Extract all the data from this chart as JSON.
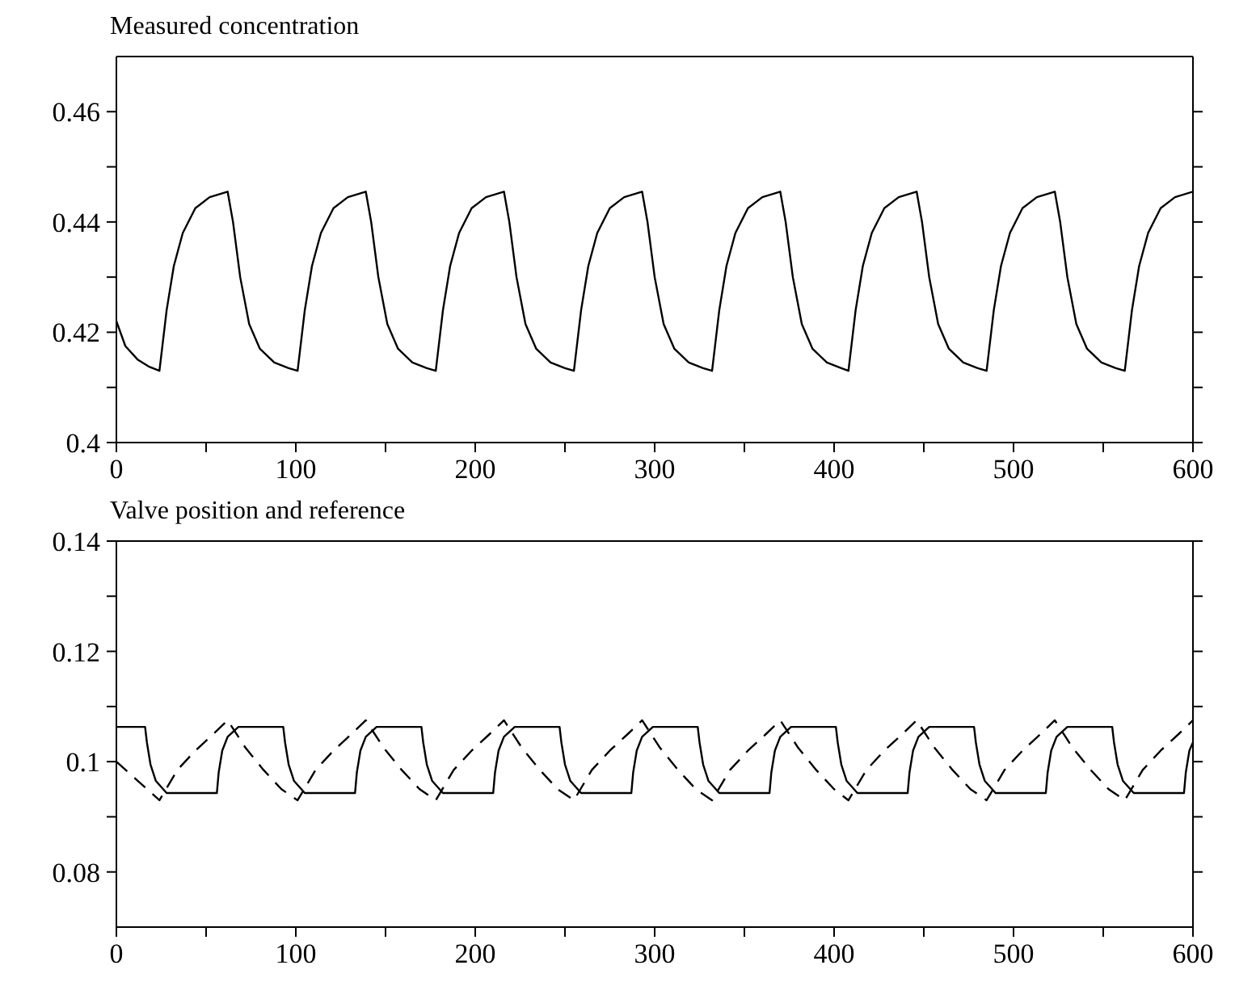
{
  "chart_data": [
    {
      "type": "line",
      "title": "Measured concentration",
      "xlim": [
        0,
        600
      ],
      "xticks": [
        0,
        {
          "value": 50,
          "label": null
        },
        100,
        {
          "value": 150,
          "label": null
        },
        200,
        {
          "value": 250,
          "label": null
        },
        300,
        {
          "value": 350,
          "label": null
        },
        400,
        {
          "value": 450,
          "label": null
        },
        500,
        {
          "value": 550,
          "label": null
        },
        600
      ],
      "ylim": [
        0.4,
        0.47
      ],
      "yticks": [
        0.4,
        {
          "value": 0.41,
          "label": null
        },
        0.42,
        {
          "value": 0.43,
          "label": null
        },
        0.44,
        {
          "value": 0.45,
          "label": null
        },
        0.46
      ],
      "series": [
        {
          "color": "#000000",
          "line_style": "solid",
          "x": [
            0,
            5,
            12,
            18,
            24,
            28,
            32,
            37,
            44,
            52,
            62,
            65,
            69,
            74,
            80,
            88,
            96,
            101,
            105,
            109,
            114,
            121,
            129,
            139,
            142,
            146,
            151,
            157,
            165,
            173,
            178,
            182,
            186,
            191,
            198,
            206,
            216,
            219,
            223,
            228,
            234,
            242,
            250,
            255,
            259,
            263,
            268,
            275,
            283,
            293,
            296,
            300,
            305,
            311,
            319,
            327,
            332,
            336,
            340,
            345,
            352,
            360,
            370,
            373,
            377,
            382,
            388,
            396,
            404,
            408,
            412,
            416,
            421,
            428,
            436,
            446,
            449,
            453,
            458,
            464,
            472,
            480,
            485,
            489,
            493,
            498,
            505,
            513,
            523,
            526,
            530,
            535,
            541,
            549,
            557,
            562,
            566,
            570,
            575,
            582,
            590,
            600
          ],
          "values": [
            0.422,
            0.4175,
            0.415,
            0.4138,
            0.413,
            0.424,
            0.432,
            0.438,
            0.4425,
            0.4445,
            0.4455,
            0.44,
            0.43,
            0.4215,
            0.417,
            0.4145,
            0.4135,
            0.413,
            0.424,
            0.432,
            0.438,
            0.4425,
            0.4445,
            0.4455,
            0.44,
            0.43,
            0.4215,
            0.417,
            0.4145,
            0.4135,
            0.413,
            0.424,
            0.432,
            0.438,
            0.4425,
            0.4445,
            0.4455,
            0.44,
            0.43,
            0.4215,
            0.417,
            0.4145,
            0.4135,
            0.413,
            0.424,
            0.432,
            0.438,
            0.4425,
            0.4445,
            0.4455,
            0.44,
            0.43,
            0.4215,
            0.417,
            0.4145,
            0.4135,
            0.413,
            0.424,
            0.432,
            0.438,
            0.4425,
            0.4445,
            0.4455,
            0.44,
            0.43,
            0.4215,
            0.417,
            0.4145,
            0.4135,
            0.413,
            0.424,
            0.432,
            0.438,
            0.4425,
            0.4445,
            0.4455,
            0.44,
            0.43,
            0.4215,
            0.417,
            0.4145,
            0.4135,
            0.413,
            0.424,
            0.432,
            0.438,
            0.4425,
            0.4445,
            0.4455,
            0.44,
            0.43,
            0.4215,
            0.417,
            0.4145,
            0.4135,
            0.413,
            0.424,
            0.432,
            0.438,
            0.4425,
            0.4445,
            0.4455
          ]
        }
      ]
    },
    {
      "type": "line",
      "title": "Valve position and reference",
      "xlim": [
        0,
        600
      ],
      "xticks": [
        0,
        {
          "value": 50,
          "label": null
        },
        100,
        {
          "value": 150,
          "label": null
        },
        200,
        {
          "value": 250,
          "label": null
        },
        300,
        {
          "value": 350,
          "label": null
        },
        400,
        {
          "value": 450,
          "label": null
        },
        500,
        {
          "value": 550,
          "label": null
        },
        600
      ],
      "ylim": [
        0.07,
        0.14
      ],
      "yticks": [
        0.08,
        {
          "value": 0.09,
          "label": null
        },
        0.1,
        {
          "value": 0.11,
          "label": null
        },
        0.12,
        {
          "value": 0.13,
          "label": null
        },
        0.14
      ],
      "series": [
        {
          "color": "#000000",
          "line_style": "solid",
          "x": [
            0,
            16,
            17,
            19,
            22,
            28,
            56,
            57,
            59,
            62,
            68,
            93,
            94,
            96,
            99,
            105,
            133,
            134,
            136,
            139,
            145,
            170,
            171,
            173,
            176,
            182,
            210,
            211,
            213,
            216,
            222,
            247,
            248,
            250,
            253,
            259,
            287,
            288,
            290,
            293,
            299,
            324,
            325,
            327,
            330,
            336,
            364,
            365,
            367,
            370,
            376,
            401,
            402,
            404,
            407,
            413,
            441,
            442,
            444,
            447,
            453,
            478,
            479,
            481,
            484,
            490,
            518,
            519,
            521,
            524,
            530,
            555,
            556,
            558,
            561,
            567,
            595,
            596,
            598,
            600
          ],
          "values": [
            0.1063,
            0.1063,
            0.1035,
            0.0995,
            0.0965,
            0.0943,
            0.0943,
            0.098,
            0.102,
            0.1045,
            0.1063,
            0.1063,
            0.1035,
            0.0995,
            0.0965,
            0.0943,
            0.0943,
            0.098,
            0.102,
            0.1045,
            0.1063,
            0.1063,
            0.1035,
            0.0995,
            0.0965,
            0.0943,
            0.0943,
            0.098,
            0.102,
            0.1045,
            0.1063,
            0.1063,
            0.1035,
            0.0995,
            0.0965,
            0.0943,
            0.0943,
            0.098,
            0.102,
            0.1045,
            0.1063,
            0.1063,
            0.1035,
            0.0995,
            0.0965,
            0.0943,
            0.0943,
            0.098,
            0.102,
            0.1045,
            0.1063,
            0.1063,
            0.1035,
            0.0995,
            0.0965,
            0.0943,
            0.0943,
            0.098,
            0.102,
            0.1045,
            0.1063,
            0.1063,
            0.1035,
            0.0995,
            0.0965,
            0.0943,
            0.0943,
            0.098,
            0.102,
            0.1045,
            0.1063,
            0.1063,
            0.1035,
            0.0995,
            0.0965,
            0.0943,
            0.0943,
            0.098,
            0.102,
            0.1035
          ]
        },
        {
          "color": "#000000",
          "line_style": "dashed",
          "x": [
            0,
            12,
            24,
            34,
            44,
            54,
            62,
            72,
            82,
            92,
            101,
            111,
            121,
            131,
            139,
            149,
            159,
            169,
            178,
            188,
            198,
            208,
            216,
            226,
            236,
            246,
            255,
            265,
            275,
            285,
            293,
            303,
            313,
            323,
            332,
            342,
            352,
            362,
            370,
            380,
            390,
            400,
            408,
            418,
            428,
            438,
            446,
            456,
            466,
            476,
            485,
            495,
            505,
            515,
            523,
            533,
            543,
            553,
            562,
            572,
            582,
            592,
            600
          ],
          "values": [
            0.1,
            0.0965,
            0.093,
            0.0985,
            0.102,
            0.105,
            0.1075,
            0.1025,
            0.0985,
            0.095,
            0.093,
            0.0985,
            0.102,
            0.105,
            0.1075,
            0.1025,
            0.0985,
            0.095,
            0.093,
            0.0985,
            0.102,
            0.105,
            0.1075,
            0.1025,
            0.0985,
            0.095,
            0.093,
            0.0985,
            0.102,
            0.105,
            0.1075,
            0.1025,
            0.0985,
            0.095,
            0.093,
            0.0985,
            0.102,
            0.105,
            0.1075,
            0.1025,
            0.0985,
            0.095,
            0.093,
            0.0985,
            0.102,
            0.105,
            0.1075,
            0.1025,
            0.0985,
            0.095,
            0.093,
            0.0985,
            0.102,
            0.105,
            0.1075,
            0.1025,
            0.0985,
            0.095,
            0.093,
            0.0985,
            0.102,
            0.105,
            0.1075
          ]
        }
      ]
    }
  ]
}
